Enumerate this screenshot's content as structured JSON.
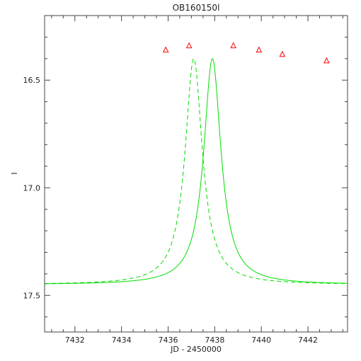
{
  "chart_data": {
    "type": "line",
    "title": "OB160150l",
    "xlabel": "JD - 2450000",
    "ylabel": "I",
    "xlim": [
      7430.7,
      7443.7
    ],
    "ylim": [
      16.2,
      17.67
    ],
    "y_inverted": true,
    "grid": false,
    "x_ticks": [
      7432,
      7434,
      7436,
      7438,
      7440,
      7442
    ],
    "x_tick_labels": [
      "7432",
      "7434",
      "7436",
      "7438",
      "7440",
      "7442"
    ],
    "y_ticks": [
      16.5,
      17.0,
      17.5
    ],
    "y_tick_labels": [
      "16.5",
      "17.0",
      "17.5"
    ],
    "series": [
      {
        "style": "triangle-markers",
        "color": "#ff0000",
        "points": [
          [
            7435.9,
            16.36
          ],
          [
            7436.9,
            16.34
          ],
          [
            7438.8,
            16.34
          ],
          [
            7439.9,
            16.36
          ],
          [
            7440.9,
            16.38
          ],
          [
            7442.8,
            16.41
          ]
        ]
      },
      {
        "style": "solid-line",
        "color": "#00dd00",
        "baseline": 17.45,
        "center": 7437.9,
        "amplitude": 1.05,
        "width": 0.45
      },
      {
        "style": "dashed-line",
        "color": "#00dd00",
        "baseline": 17.45,
        "center": 7437.1,
        "amplitude": 1.05,
        "width": 0.45
      }
    ]
  }
}
